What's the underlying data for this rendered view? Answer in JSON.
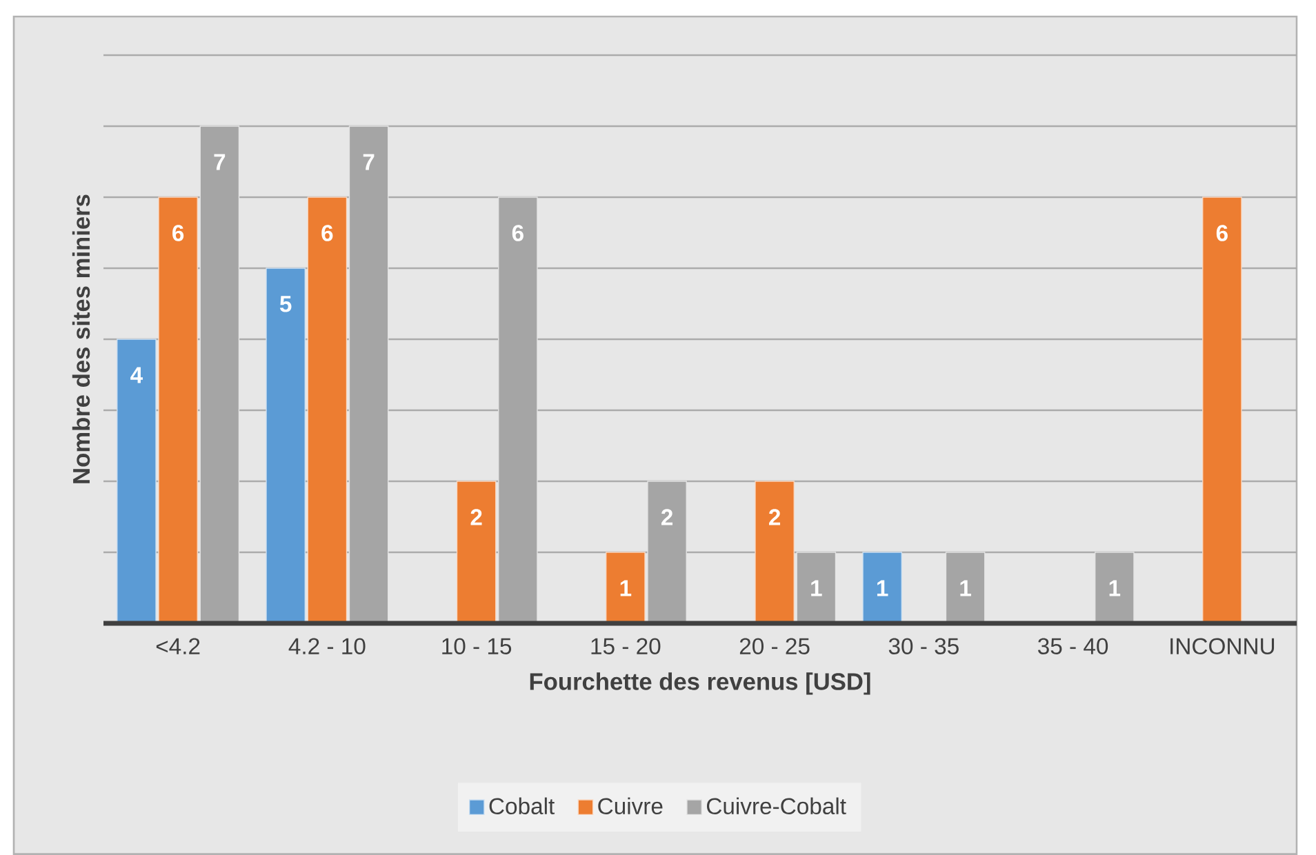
{
  "chart_data": {
    "type": "bar",
    "xlabel": "Fourchette des revenus [USD]",
    "ylabel": "Nombre des sites miniers",
    "categories": [
      "<4.2",
      "4.2 - 10",
      "10 - 15",
      "15 - 20",
      "20 - 25",
      "30 - 35",
      "35 - 40",
      "INCONNU"
    ],
    "series": [
      {
        "name": "Cobalt",
        "color": "#5b9bd5",
        "values": [
          4,
          5,
          null,
          null,
          null,
          1,
          null,
          null
        ]
      },
      {
        "name": "Cuivre",
        "color": "#ed7d31",
        "values": [
          6,
          6,
          2,
          1,
          2,
          null,
          null,
          6
        ]
      },
      {
        "name": "Cuivre-Cobalt",
        "color": "#a5a5a5",
        "values": [
          7,
          7,
          6,
          2,
          1,
          1,
          1,
          null
        ]
      }
    ],
    "ylim": [
      0,
      8
    ],
    "yticks": [
      {
        "value": 1,
        "label": null
      },
      {
        "value": 2,
        "label": null
      },
      {
        "value": 3,
        "label": null
      },
      {
        "value": 4,
        "label": null
      },
      {
        "value": 5,
        "label": null
      },
      {
        "value": 6,
        "label": null
      },
      {
        "value": 7,
        "label": null
      },
      {
        "value": 8,
        "label": null
      }
    ],
    "tick_labels": "x",
    "grid": "y",
    "data_labels": true,
    "legend": "bottom"
  }
}
